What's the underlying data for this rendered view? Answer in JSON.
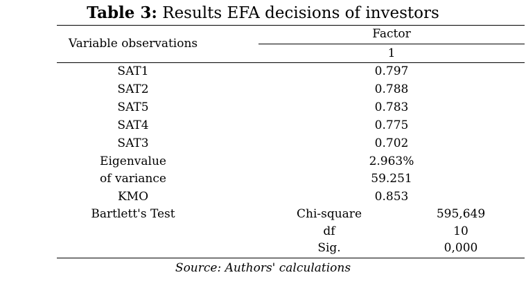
{
  "title": {
    "label": "Table 3:",
    "text": " Results EFA decisions of investors"
  },
  "table": {
    "col_header": "Variable observations",
    "factor_header": "Factor",
    "factor_number": "1",
    "rows": [
      {
        "label": "SAT1",
        "value": "0.797"
      },
      {
        "label": "SAT2",
        "value": "0.788"
      },
      {
        "label": "SAT5",
        "value": "0.783"
      },
      {
        "label": "SAT4",
        "value": "0.775"
      },
      {
        "label": "SAT3",
        "value": "0.702"
      },
      {
        "label": "Eigenvalue",
        "value": "2.963%"
      },
      {
        "label": "of variance",
        "value": "59.251"
      },
      {
        "label": "KMO",
        "value": "0.853"
      }
    ],
    "bartlett": {
      "label": "Bartlett's Test",
      "items": [
        {
          "name": "Chi-square",
          "value": "595,649"
        },
        {
          "name": "df",
          "value": "10"
        },
        {
          "name": "Sig.",
          "value": "0,000"
        }
      ]
    }
  },
  "source": "Source: Authors' calculations"
}
